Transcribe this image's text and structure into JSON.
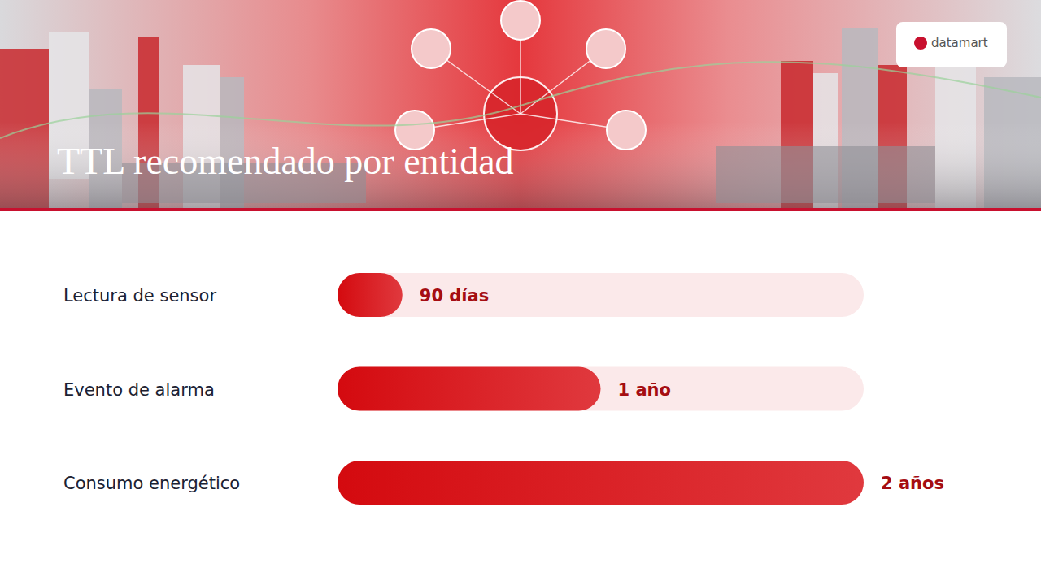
{
  "chart_data": {
    "type": "bar",
    "orientation": "horizontal",
    "title": "TTL recomendado por entidad",
    "categories": [
      "Lectura de sensor",
      "Evento de alarma",
      "Consumo energético"
    ],
    "values": [
      90,
      365,
      730
    ],
    "value_labels": [
      "90 días",
      "1 año",
      "2 años"
    ],
    "data_labels": true,
    "xlim": [
      0,
      730
    ],
    "tick_labels": false,
    "grid": false,
    "color": "#d40a0f",
    "annotations": [
      "datamart"
    ]
  }
}
